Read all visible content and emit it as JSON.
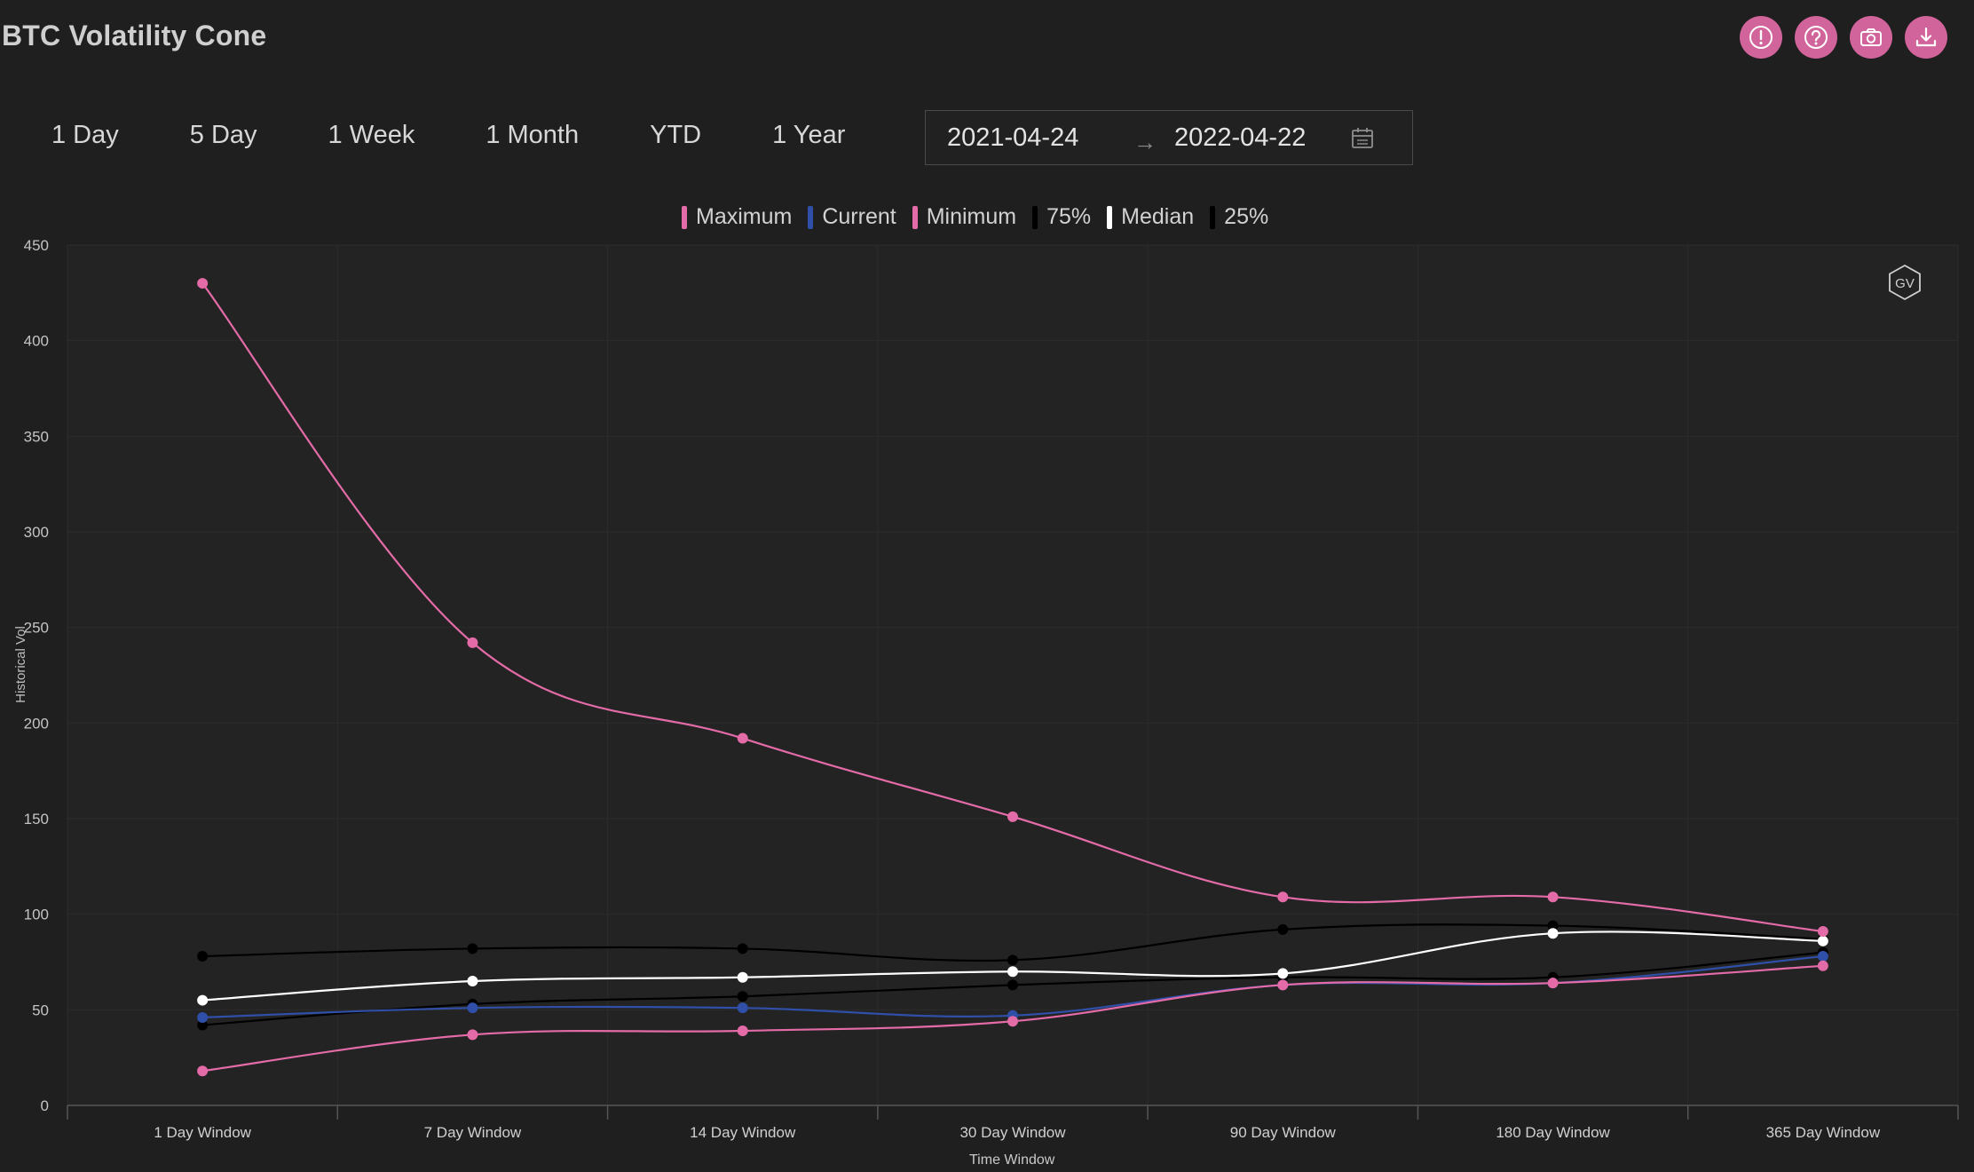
{
  "header": {
    "title": "BTC Volatility Cone",
    "actions": [
      {
        "name": "info-button",
        "icon": "exclamation-circle-icon"
      },
      {
        "name": "help-button",
        "icon": "question-circle-icon"
      },
      {
        "name": "screenshot-button",
        "icon": "camera-icon"
      },
      {
        "name": "download-button",
        "icon": "download-icon"
      }
    ]
  },
  "range_buttons": [
    "1 Day",
    "5 Day",
    "1 Week",
    "1 Month",
    "YTD",
    "1 Year"
  ],
  "date_range": {
    "start": "2021-04-24",
    "end": "2022-04-22",
    "separator": "→"
  },
  "watermark": "GV",
  "colors": {
    "accent": "#d1649b",
    "maximum": "#e36ba7",
    "current": "#2f4fa8",
    "minimum": "#e36ba7",
    "p75": "#000000",
    "median": "#ffffff",
    "p25": "#000000"
  },
  "chart_data": {
    "type": "line",
    "title": "BTC Volatility Cone",
    "xlabel": "Time Window",
    "ylabel": "Historical Vol",
    "categories": [
      "1 Day Window",
      "7 Day Window",
      "14 Day Window",
      "30 Day Window",
      "90 Day Window",
      "180 Day Window",
      "365 Day Window"
    ],
    "ylim": [
      0,
      450
    ],
    "yticks": [
      0,
      50,
      100,
      150,
      200,
      250,
      300,
      350,
      400,
      450
    ],
    "grid": true,
    "legend_position": "top-center",
    "series": [
      {
        "name": "Maximum",
        "color": "#e36ba7",
        "values": [
          430,
          242,
          192,
          151,
          109,
          109,
          91
        ]
      },
      {
        "name": "Current",
        "color": "#2f4fa8",
        "values": [
          46,
          51,
          51,
          47,
          63,
          64,
          78
        ]
      },
      {
        "name": "Minimum",
        "color": "#e36ba7",
        "values": [
          18,
          37,
          39,
          44,
          63,
          64,
          73
        ]
      },
      {
        "name": "75%",
        "color": "#000000",
        "values": [
          78,
          82,
          82,
          76,
          92,
          94,
          87
        ]
      },
      {
        "name": "Median",
        "color": "#ffffff",
        "values": [
          55,
          65,
          67,
          70,
          69,
          90,
          86
        ]
      },
      {
        "name": "25%",
        "color": "#000000",
        "values": [
          42,
          53,
          57,
          63,
          67,
          67,
          80
        ]
      }
    ]
  }
}
